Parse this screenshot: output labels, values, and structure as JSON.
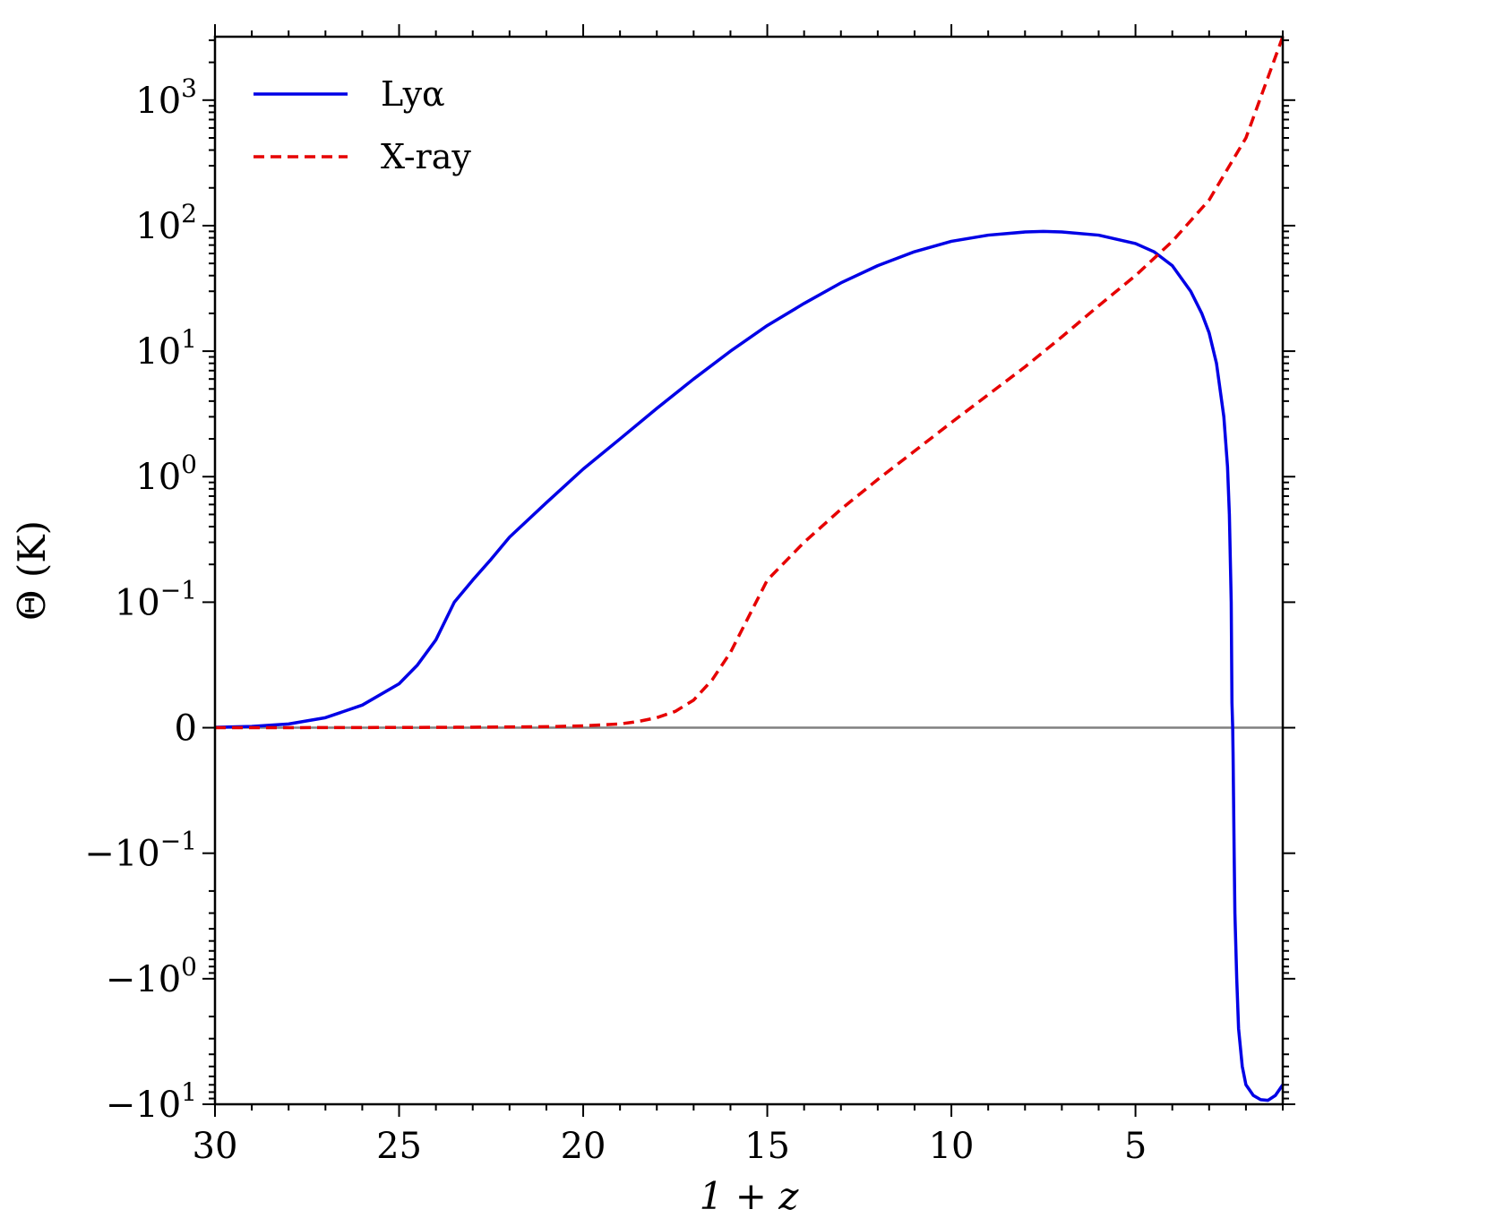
{
  "chart_data": {
    "type": "line",
    "title": "",
    "xlabel": "1 + z",
    "ylabel": "Θ (K)",
    "x_inverted": true,
    "xlim": [
      30,
      1
    ],
    "y_scale": "symlog",
    "y_linthresh": 0.1,
    "ylim": [
      -10,
      3200
    ],
    "x_ticks": [
      30,
      25,
      20,
      15,
      10,
      5
    ],
    "y_ticks": [
      {
        "value": 1000,
        "base": "10",
        "exp": "3"
      },
      {
        "value": 100,
        "base": "10",
        "exp": "2"
      },
      {
        "value": 10,
        "base": "10",
        "exp": "1"
      },
      {
        "value": 1,
        "base": "10",
        "exp": "0"
      },
      {
        "value": 0.1,
        "base": "10",
        "exp": "−1"
      },
      {
        "value": 0,
        "base": "0",
        "exp": ""
      },
      {
        "value": -0.1,
        "base": "−10",
        "exp": "−1"
      },
      {
        "value": -1,
        "base": "−10",
        "exp": "0"
      },
      {
        "value": -10,
        "base": "−10",
        "exp": "1"
      }
    ],
    "zero_line_color": "#808080",
    "legend_position": "top-left",
    "series": [
      {
        "name": "Lyα",
        "color": "#0000e6",
        "style": "solid",
        "x": [
          30,
          29,
          28,
          27,
          26,
          25,
          24.5,
          24,
          23.5,
          23,
          22.5,
          22,
          21,
          20,
          19,
          18,
          17,
          16,
          15,
          14,
          13,
          12,
          11,
          10,
          9,
          8,
          7.5,
          7,
          6,
          5,
          4.5,
          4,
          3.5,
          3.2,
          3,
          2.8,
          2.6,
          2.5,
          2.45,
          2.4,
          2.38,
          2.36,
          2.35,
          2.32,
          2.3,
          2.25,
          2.2,
          2.1,
          2.0,
          1.8,
          1.6,
          1.4,
          1.2,
          1.0
        ],
        "y": [
          0.0003,
          0.001,
          0.003,
          0.008,
          0.018,
          0.035,
          0.05,
          0.07,
          0.1,
          0.15,
          0.22,
          0.33,
          0.62,
          1.15,
          2.0,
          3.5,
          6.0,
          10,
          16,
          24,
          35,
          48,
          62,
          75,
          84,
          89,
          90,
          89,
          84,
          72,
          62,
          48,
          30,
          20,
          14,
          8,
          3,
          1.2,
          0.5,
          0.1,
          0.02,
          0,
          -0.02,
          -0.1,
          -0.3,
          -1.0,
          -2.5,
          -5.0,
          -7.0,
          -8.5,
          -9.2,
          -9.3,
          -8.5,
          -7.0
        ]
      },
      {
        "name": "X-ray",
        "color": "#e60000",
        "style": "dashed",
        "x": [
          30,
          27,
          25,
          23,
          21,
          20,
          19,
          18.5,
          18,
          17.5,
          17,
          16.5,
          16,
          15,
          14,
          13,
          12,
          11,
          10,
          9,
          8,
          7,
          6,
          5,
          4,
          3,
          2,
          1
        ],
        "y": [
          0,
          0.0001,
          0.0002,
          0.0004,
          0.0008,
          0.0015,
          0.003,
          0.005,
          0.008,
          0.013,
          0.022,
          0.038,
          0.06,
          0.15,
          0.3,
          0.55,
          0.95,
          1.6,
          2.7,
          4.5,
          7.5,
          13,
          23,
          40,
          75,
          160,
          500,
          3200
        ]
      }
    ]
  }
}
